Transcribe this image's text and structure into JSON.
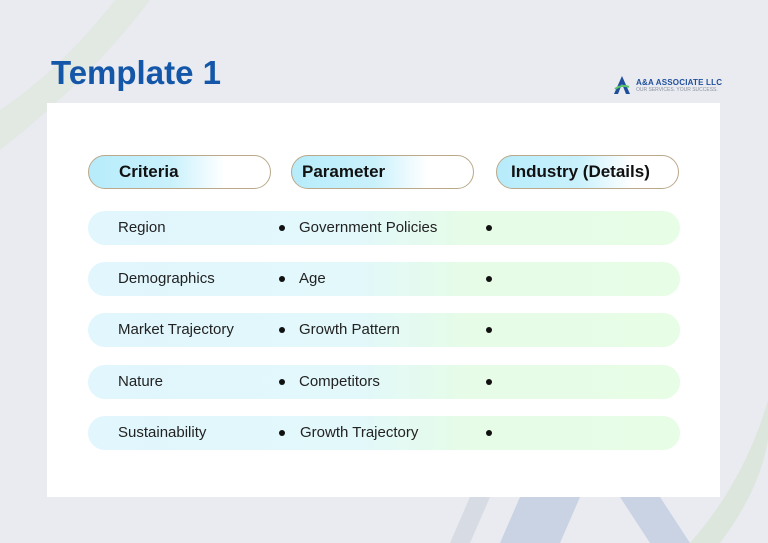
{
  "title": "Template 1",
  "logo": {
    "name": "A&A ASSOCIATE LLC",
    "tagline": "OUR SERVICES. YOUR SUCCESS."
  },
  "headers": [
    "Criteria",
    "Parameter",
    "Industry (Details)"
  ],
  "rows": [
    {
      "criteria": "Region",
      "parameter": "Government Policies",
      "details": ""
    },
    {
      "criteria": "Demographics",
      "parameter": "Age",
      "details": ""
    },
    {
      "criteria": "Market Trajectory",
      "parameter": "Growth Pattern",
      "details": ""
    },
    {
      "criteria": "Nature",
      "parameter": "Competitors",
      "details": ""
    },
    {
      "criteria": "Sustainability",
      "parameter": "Growth Trajectory",
      "details": ""
    }
  ],
  "colors": {
    "title": "#1456a8",
    "row_start": "#e1f6fd",
    "row_end": "#e7fde6",
    "header_fill": "#b7ecfb"
  }
}
